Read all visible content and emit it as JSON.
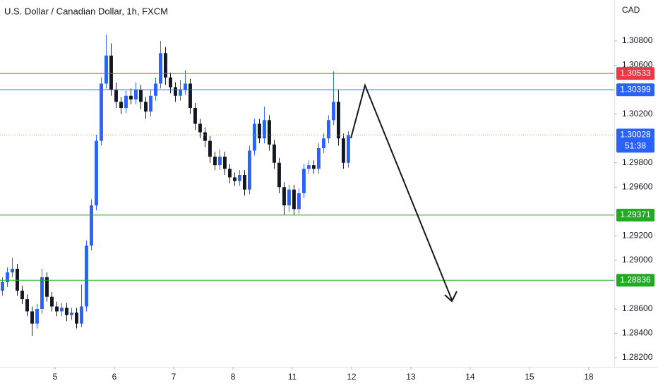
{
  "chart_data": {
    "type": "candlestick",
    "title": "U.S. Dollar / Canadian Dollar, 1h, FXCM",
    "currency": "CAD",
    "up_color": "#2962ff",
    "down_color": "#131722",
    "x": [
      0,
      1,
      2,
      3,
      4,
      5,
      6,
      7,
      8,
      9,
      10,
      11,
      12,
      13,
      14,
      15,
      16,
      17,
      18,
      19,
      20,
      21,
      22,
      23,
      24,
      25,
      26,
      27,
      28,
      29,
      30,
      31,
      32,
      33,
      34,
      35,
      36,
      37,
      38,
      39,
      40,
      41,
      42,
      43,
      44,
      45,
      46,
      47,
      48,
      49,
      50,
      51,
      52,
      53,
      54,
      55,
      56,
      57,
      58,
      59,
      60,
      61,
      62,
      63,
      64,
      65,
      66,
      67,
      68,
      69,
      70
    ],
    "open": [
      1.2875,
      1.2882,
      1.289,
      1.2893,
      1.2875,
      1.2868,
      1.2858,
      1.2848,
      1.286,
      1.2886,
      1.287,
      1.2862,
      1.2858,
      1.2861,
      1.2855,
      1.2857,
      1.2848,
      1.2862,
      1.2912,
      1.2945,
      1.2998,
      1.3045,
      1.3068,
      1.304,
      1.303,
      1.3025,
      1.3035,
      1.3032,
      1.304,
      1.303,
      1.3022,
      1.3035,
      1.3045,
      1.307,
      1.305,
      1.3042,
      1.3035,
      1.304,
      1.3045,
      1.3025,
      1.3012,
      1.3005,
      1.2998,
      1.2985,
      1.2978,
      1.2985,
      1.2975,
      1.2968,
      1.2965,
      1.297,
      1.2958,
      1.299,
      1.3012,
      1.3,
      1.3015,
      1.2995,
      1.298,
      1.296,
      1.2945,
      1.2958,
      1.2942,
      1.2955,
      1.2975,
      1.2978,
      1.2975,
      1.2992,
      1.3,
      1.3015,
      1.303,
      1.3,
      1.298
    ],
    "high": [
      1.2886,
      1.2894,
      1.2902,
      1.2897,
      1.2879,
      1.2872,
      1.2862,
      1.2864,
      1.2893,
      1.289,
      1.2874,
      1.2866,
      1.2865,
      1.2865,
      1.2861,
      1.2861,
      1.288,
      1.2916,
      1.295,
      1.3003,
      1.305,
      1.3085,
      1.3078,
      1.3046,
      1.3034,
      1.3039,
      1.3041,
      1.3046,
      1.3044,
      1.3034,
      1.304,
      1.305,
      1.308,
      1.3075,
      1.3054,
      1.3046,
      1.3048,
      1.3056,
      1.3049,
      1.3029,
      1.3016,
      1.3009,
      1.3002,
      1.2989,
      1.2991,
      1.2989,
      1.2979,
      1.2972,
      1.2974,
      1.2974,
      1.2994,
      1.3016,
      1.3016,
      1.3026,
      1.3019,
      1.2999,
      1.2984,
      1.2964,
      1.2962,
      1.2962,
      1.2959,
      1.2979,
      1.2982,
      1.2982,
      1.2996,
      1.3004,
      1.3019,
      1.3055,
      1.304,
      1.3004,
      1.3006
    ],
    "low": [
      1.2871,
      1.2878,
      1.2886,
      1.2871,
      1.2864,
      1.2854,
      1.2838,
      1.2844,
      1.2856,
      1.2866,
      1.2858,
      1.2854,
      1.2854,
      1.285,
      1.2851,
      1.2844,
      1.2845,
      1.2858,
      1.2908,
      1.2941,
      1.2994,
      1.3041,
      1.3035,
      1.3025,
      1.302,
      1.3021,
      1.3028,
      1.3028,
      1.3024,
      1.3016,
      1.3018,
      1.3031,
      1.3041,
      1.3044,
      1.3037,
      1.303,
      1.3031,
      1.3036,
      1.302,
      1.3007,
      1.3,
      1.2993,
      1.298,
      1.2974,
      1.2974,
      1.297,
      1.2963,
      1.2961,
      1.2961,
      1.2953,
      1.2954,
      1.2986,
      1.2996,
      1.2996,
      1.299,
      1.2975,
      1.2955,
      1.2937,
      1.294,
      1.2937,
      1.2938,
      1.2951,
      1.2971,
      1.2971,
      1.2971,
      1.2988,
      1.2996,
      1.3011,
      1.2994,
      1.2975,
      1.2976
    ],
    "close": [
      1.2882,
      1.289,
      1.2893,
      1.2875,
      1.2868,
      1.2858,
      1.2848,
      1.286,
      1.2886,
      1.287,
      1.2862,
      1.2858,
      1.2861,
      1.2855,
      1.2857,
      1.2848,
      1.2862,
      1.2912,
      1.2945,
      1.2998,
      1.3045,
      1.3068,
      1.304,
      1.303,
      1.3025,
      1.3035,
      1.3032,
      1.304,
      1.303,
      1.3022,
      1.3035,
      1.3045,
      1.307,
      1.305,
      1.3042,
      1.3035,
      1.304,
      1.3045,
      1.3025,
      1.3012,
      1.3005,
      1.2998,
      1.2985,
      1.2978,
      1.2985,
      1.2975,
      1.2968,
      1.2965,
      1.297,
      1.2958,
      1.299,
      1.3012,
      1.3,
      1.3015,
      1.2995,
      1.298,
      1.296,
      1.2945,
      1.2958,
      1.2942,
      1.2955,
      1.2975,
      1.2978,
      1.2975,
      1.2992,
      1.3,
      1.3015,
      1.303,
      1.3,
      1.298,
      1.30028
    ],
    "xlim": [
      -0.5,
      123.8
    ],
    "xticks": [
      {
        "value": 10.64,
        "label": "5"
      },
      {
        "value": 22.64,
        "label": "6"
      },
      {
        "value": 34.64,
        "label": "7"
      },
      {
        "value": 46.64,
        "label": "8"
      },
      {
        "value": 58.64,
        "label": "11"
      },
      {
        "value": 70.64,
        "label": "12"
      },
      {
        "value": 82.64,
        "label": "13"
      },
      {
        "value": 94.64,
        "label": "14"
      },
      {
        "value": 106.64,
        "label": "15"
      },
      {
        "value": 118.64,
        "label": "18"
      }
    ],
    "ylim": [
      1.28125,
      1.31136
    ],
    "yticks": [
      {
        "value": 1.308,
        "label": "1.30800"
      },
      {
        "value": 1.306,
        "label": "1.30600"
      },
      {
        "value": 1.302,
        "label": "1.30200"
      },
      {
        "value": 1.298,
        "label": "1.29800"
      },
      {
        "value": 1.296,
        "label": "1.29600"
      },
      {
        "value": 1.292,
        "label": "1.29200"
      },
      {
        "value": 1.29,
        "label": "1.29000"
      },
      {
        "value": 1.286,
        "label": "1.28600"
      },
      {
        "value": 1.284,
        "label": "1.28400"
      },
      {
        "value": 1.282,
        "label": "1.28200"
      }
    ],
    "price_lines": [
      {
        "value": 1.30533,
        "label": "1.30533",
        "color": "#f23645"
      },
      {
        "value": 1.30399,
        "label": "1.30399",
        "color": "#2962ff"
      },
      {
        "value": 1.29371,
        "label": "1.29371",
        "color": "#22ab22"
      },
      {
        "value": 1.28836,
        "label": "1.28836",
        "color": "#22ab22"
      }
    ],
    "last_price": {
      "value": 1.30028,
      "label": "1.30028",
      "countdown": "51:38",
      "color": "#2962ff",
      "line_color": "#f5a04a"
    }
  }
}
